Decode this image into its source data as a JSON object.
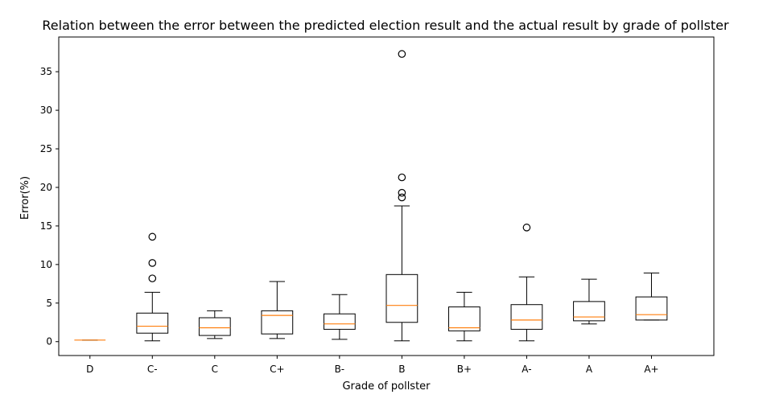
{
  "chart_data": {
    "type": "box",
    "title": "Relation between the error between the predicted election result and the actual result by grade of pollster",
    "xlabel": "Grade of pollster",
    "ylabel": "Error(%)",
    "ylim": [
      -1.8,
      39.5
    ],
    "yticks": [
      0,
      5,
      10,
      15,
      20,
      25,
      30,
      35
    ],
    "grid": false,
    "categories": [
      "D",
      "C-",
      "C",
      "C+",
      "B-",
      "B",
      "B+",
      "A-",
      "A",
      "A+"
    ],
    "boxes": [
      {
        "category": "D",
        "whisker_low": 0.2,
        "q1": 0.2,
        "median": 0.2,
        "q3": 0.2,
        "whisker_high": 0.2,
        "outliers": []
      },
      {
        "category": "C-",
        "whisker_low": 0.1,
        "q1": 1.1,
        "median": 2.0,
        "q3": 3.7,
        "whisker_high": 6.4,
        "outliers": [
          8.2,
          10.2,
          13.6
        ]
      },
      {
        "category": "C",
        "whisker_low": 0.4,
        "q1": 0.8,
        "median": 1.8,
        "q3": 3.1,
        "whisker_high": 4.0,
        "outliers": []
      },
      {
        "category": "C+",
        "whisker_low": 0.4,
        "q1": 1.0,
        "median": 3.4,
        "q3": 4.0,
        "whisker_high": 7.8,
        "outliers": []
      },
      {
        "category": "B-",
        "whisker_low": 0.3,
        "q1": 1.6,
        "median": 2.3,
        "q3": 3.6,
        "whisker_high": 6.1,
        "outliers": []
      },
      {
        "category": "B",
        "whisker_low": 0.1,
        "q1": 2.5,
        "median": 4.7,
        "q3": 8.7,
        "whisker_high": 17.6,
        "outliers": [
          18.7,
          19.3,
          21.3,
          37.3
        ]
      },
      {
        "category": "B+",
        "whisker_low": 0.1,
        "q1": 1.4,
        "median": 1.8,
        "q3": 4.5,
        "whisker_high": 6.4,
        "outliers": []
      },
      {
        "category": "A-",
        "whisker_low": 0.1,
        "q1": 1.6,
        "median": 2.8,
        "q3": 4.8,
        "whisker_high": 8.4,
        "outliers": [
          14.8
        ]
      },
      {
        "category": "A",
        "whisker_low": 2.3,
        "q1": 2.7,
        "median": 3.2,
        "q3": 5.2,
        "whisker_high": 8.1,
        "outliers": []
      },
      {
        "category": "A+",
        "whisker_low": 2.8,
        "q1": 2.8,
        "median": 3.5,
        "q3": 5.8,
        "whisker_high": 8.9,
        "outliers": []
      }
    ],
    "colors": {
      "box": "#000000",
      "median": "#ff7f0e",
      "outlier": "#000000"
    }
  }
}
